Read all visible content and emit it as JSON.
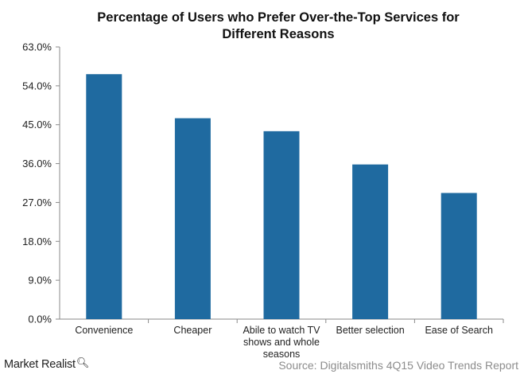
{
  "chart_data": {
    "type": "bar",
    "title": "Percentage of Users who Prefer Over-the-Top Services for Different Reasons",
    "title_lines": [
      "Percentage of Users who Prefer Over-the-Top Services for",
      "Different Reasons"
    ],
    "categories": [
      "Convenience",
      "Cheaper",
      "Abile to watch TV shows and whole seasons",
      "Better selection",
      "Ease of Search"
    ],
    "category_label_lines": [
      [
        "Convenience"
      ],
      [
        "Cheaper"
      ],
      [
        "Abile to watch TV",
        "shows and whole",
        "seasons"
      ]
    ],
    "category_label_lines_rest": [
      [
        "Better selection"
      ],
      [
        "Ease of Search"
      ]
    ],
    "values": [
      56.7,
      46.5,
      43.5,
      35.8,
      29.2
    ],
    "ylim": [
      0,
      63
    ],
    "yticks": [
      0,
      9,
      18,
      27,
      36,
      45,
      54,
      63
    ],
    "ytick_labels": [
      "0.0%",
      "9.0%",
      "18.0%",
      "27.0%",
      "36.0%",
      "45.0%",
      "54.0%",
      "63.0%"
    ],
    "xlabel": "",
    "ylabel": "",
    "bar_color": "#1f6aa0",
    "grid": false,
    "legend": "none"
  },
  "branding": {
    "name": "Market Realist",
    "icon": "magnifier-icon"
  },
  "source": "Source: Digitalsmiths 4Q15 Video Trends Report"
}
